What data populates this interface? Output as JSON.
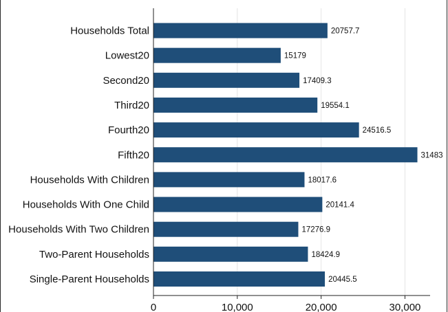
{
  "chart_data": {
    "type": "bar",
    "orientation": "horizontal",
    "categories": [
      "Households Total",
      "Lowest20",
      "Second20",
      "Third20",
      "Fourth20",
      "Fifth20",
      "Households With Children",
      "Households With One Child",
      "Households With Two Children",
      "Two-Parent Households",
      "Single-Parent Households"
    ],
    "values": [
      20757.7,
      15179,
      17409.3,
      19554.1,
      24516.5,
      31483,
      18017.6,
      20141.4,
      17276.9,
      18424.9,
      20445.5
    ],
    "value_labels": [
      "20757.7",
      "15179",
      "17409.3",
      "19554.1",
      "24516.5",
      "31483",
      "18017.6",
      "20141.4",
      "17276.9",
      "18424.9",
      "20445.5"
    ],
    "xticks": [
      0,
      10000,
      20000,
      30000
    ],
    "xtick_labels": [
      "0",
      "10,000",
      "20,000",
      "30,000"
    ],
    "xlim": [
      0,
      33000
    ],
    "bar_color": "#1f4e79",
    "grid": true
  }
}
